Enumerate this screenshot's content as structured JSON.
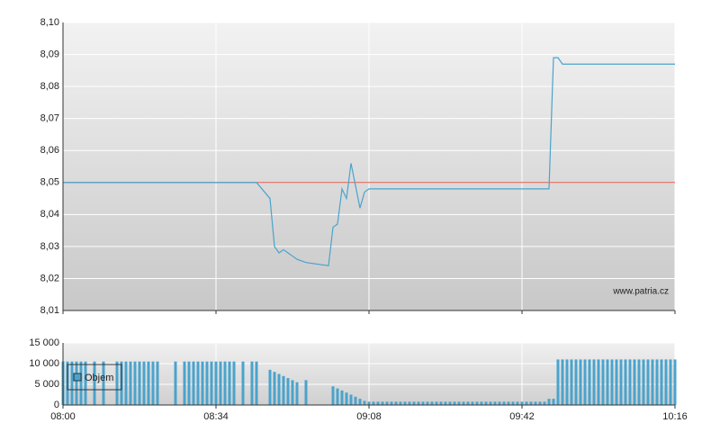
{
  "chart_data": [
    {
      "type": "line",
      "xlim": [
        "08:00",
        "10:16"
      ],
      "xticks": [
        "08:00",
        "08:34",
        "09:08",
        "09:42",
        "10:16"
      ],
      "ylim": [
        8.01,
        8.1
      ],
      "yticks": [
        {
          "value": 8.01,
          "label": "8,01"
        },
        {
          "value": 8.02,
          "label": "8,02"
        },
        {
          "value": 8.03,
          "label": "8,03"
        },
        {
          "value": 8.04,
          "label": "8,04"
        },
        {
          "value": 8.05,
          "label": "8,05"
        },
        {
          "value": 8.06,
          "label": "8,06"
        },
        {
          "value": 8.07,
          "label": "8,07"
        },
        {
          "value": 8.08,
          "label": "8,08"
        },
        {
          "value": 8.09,
          "label": "8,09"
        },
        {
          "value": 8.1,
          "label": "8,10"
        }
      ],
      "grid": true,
      "reference_line": {
        "value": 8.05,
        "color": "#e0584c"
      },
      "annotation": "www.patria.cz",
      "series": [
        {
          "color": "#4aa3cc",
          "x": [
            "08:00",
            "08:43",
            "08:46",
            "08:47",
            "08:48",
            "08:49",
            "08:50",
            "08:51",
            "08:52",
            "08:54",
            "08:59",
            "09:00",
            "09:01",
            "09:02",
            "09:03",
            "09:04",
            "09:05",
            "09:06",
            "09:07",
            "09:08",
            "09:48",
            "09:49",
            "09:50",
            "09:51",
            "10:16"
          ],
          "values": [
            8.05,
            8.05,
            8.045,
            8.03,
            8.028,
            8.029,
            8.028,
            8.027,
            8.026,
            8.025,
            8.024,
            8.036,
            8.037,
            8.048,
            8.045,
            8.056,
            8.049,
            8.042,
            8.047,
            8.048,
            8.048,
            8.089,
            8.089,
            8.087,
            8.087
          ]
        }
      ]
    },
    {
      "type": "bar",
      "xlim": [
        "08:00",
        "10:16"
      ],
      "xticks": [
        "08:00",
        "08:34",
        "09:08",
        "09:42",
        "10:16"
      ],
      "ylim": [
        0,
        15000
      ],
      "yticks": [
        0,
        {
          "value": 5000,
          "label": "5 000"
        },
        {
          "value": 10000,
          "label": "10 000"
        },
        {
          "value": 15000,
          "label": "15 000"
        }
      ],
      "grid": true,
      "series": [
        {
          "name": "Objem",
          "color": "#4aa3cc",
          "x": [
            "08:00",
            "08:01",
            "08:02",
            "08:03",
            "08:04",
            "08:05",
            "08:07",
            "08:09",
            "08:12",
            "08:13",
            "08:14",
            "08:15",
            "08:16",
            "08:17",
            "08:18",
            "08:19",
            "08:20",
            "08:21",
            "08:25",
            "08:27",
            "08:28",
            "08:29",
            "08:30",
            "08:31",
            "08:32",
            "08:33",
            "08:34",
            "08:35",
            "08:36",
            "08:37",
            "08:38",
            "08:40",
            "08:42",
            "08:43",
            "08:46",
            "08:47",
            "08:48",
            "08:49",
            "08:50",
            "08:51",
            "08:52",
            "08:54",
            "09:00",
            "09:01",
            "09:02",
            "09:03",
            "09:04",
            "09:05",
            "09:06",
            "09:07",
            "09:08",
            "09:09",
            "09:10",
            "09:11",
            "09:12",
            "09:13",
            "09:14",
            "09:15",
            "09:16",
            "09:17",
            "09:18",
            "09:19",
            "09:20",
            "09:21",
            "09:22",
            "09:23",
            "09:24",
            "09:25",
            "09:26",
            "09:27",
            "09:28",
            "09:29",
            "09:30",
            "09:31",
            "09:32",
            "09:33",
            "09:34",
            "09:35",
            "09:36",
            "09:37",
            "09:38",
            "09:39",
            "09:40",
            "09:41",
            "09:42",
            "09:43",
            "09:44",
            "09:45",
            "09:46",
            "09:47",
            "09:48",
            "09:49",
            "09:50",
            "09:51",
            "09:52",
            "09:53",
            "09:54",
            "09:55",
            "09:56",
            "09:57",
            "09:58",
            "09:59",
            "10:00",
            "10:01",
            "10:02",
            "10:03",
            "10:04",
            "10:05",
            "10:06",
            "10:07",
            "10:08",
            "10:09",
            "10:10",
            "10:11",
            "10:12",
            "10:13",
            "10:14",
            "10:15",
            "10:16"
          ],
          "values": [
            10500,
            10500,
            10500,
            10500,
            10500,
            10500,
            10500,
            10500,
            10500,
            10500,
            10500,
            10500,
            10500,
            10500,
            10500,
            10500,
            10500,
            10500,
            10500,
            10500,
            10500,
            10500,
            10500,
            10500,
            10500,
            10500,
            10500,
            10500,
            10500,
            10500,
            10500,
            10500,
            10500,
            10500,
            8500,
            8000,
            7500,
            7000,
            6500,
            6000,
            5500,
            6000,
            4500,
            4000,
            3500,
            3000,
            2500,
            2000,
            1500,
            1000,
            800,
            800,
            800,
            800,
            800,
            800,
            800,
            800,
            800,
            800,
            800,
            800,
            800,
            800,
            800,
            800,
            800,
            800,
            800,
            800,
            800,
            800,
            800,
            800,
            800,
            800,
            800,
            800,
            800,
            800,
            800,
            800,
            800,
            800,
            800,
            800,
            800,
            800,
            800,
            800,
            1500,
            1500,
            11000,
            11000,
            11000,
            11000,
            11000,
            11000,
            11000,
            11000,
            11000,
            11000,
            11000,
            11000,
            11000,
            11000,
            11000,
            11000,
            11000,
            11000,
            11000,
            11000,
            11000,
            11000,
            11000,
            11000,
            11000,
            11000,
            11000
          ]
        }
      ]
    }
  ]
}
